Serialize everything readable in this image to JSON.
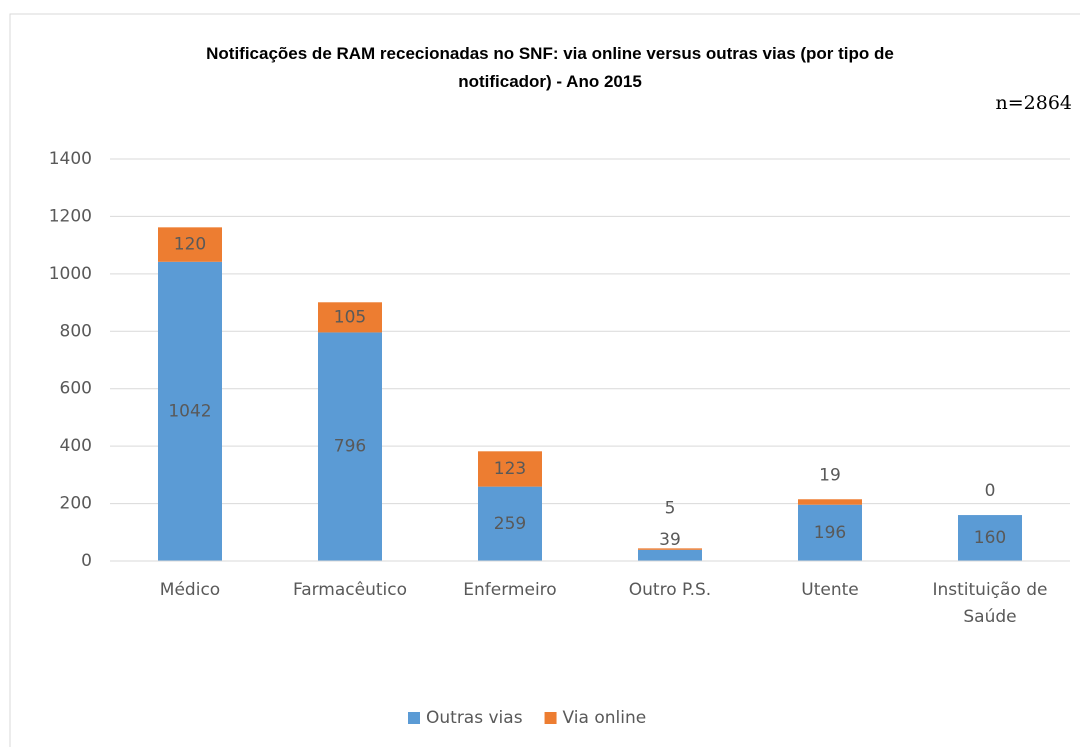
{
  "chart_data": {
    "type": "stacked_bar",
    "title": "Notificações de RAM rececionadas no SNF: via online versus outras vias (por tipo de notificador) - Ano 2015",
    "annotation": "n=2864",
    "categories": [
      "Médico",
      "Farmacêutico",
      "Enfermeiro",
      "Outro P.S.",
      "Utente",
      "Instituição de Saúde"
    ],
    "series": [
      {
        "name": "Outras vias",
        "color": "#5b9bd5",
        "values": [
          1042,
          796,
          259,
          39,
          196,
          160
        ]
      },
      {
        "name": "Via online",
        "color": "#ed7d31",
        "values": [
          120,
          105,
          123,
          5,
          19,
          0
        ]
      }
    ],
    "ylim": [
      0,
      1400
    ],
    "yticks": [
      0,
      200,
      400,
      600,
      800,
      1000,
      1200,
      1400
    ],
    "grid": true,
    "legend": "bottom"
  }
}
